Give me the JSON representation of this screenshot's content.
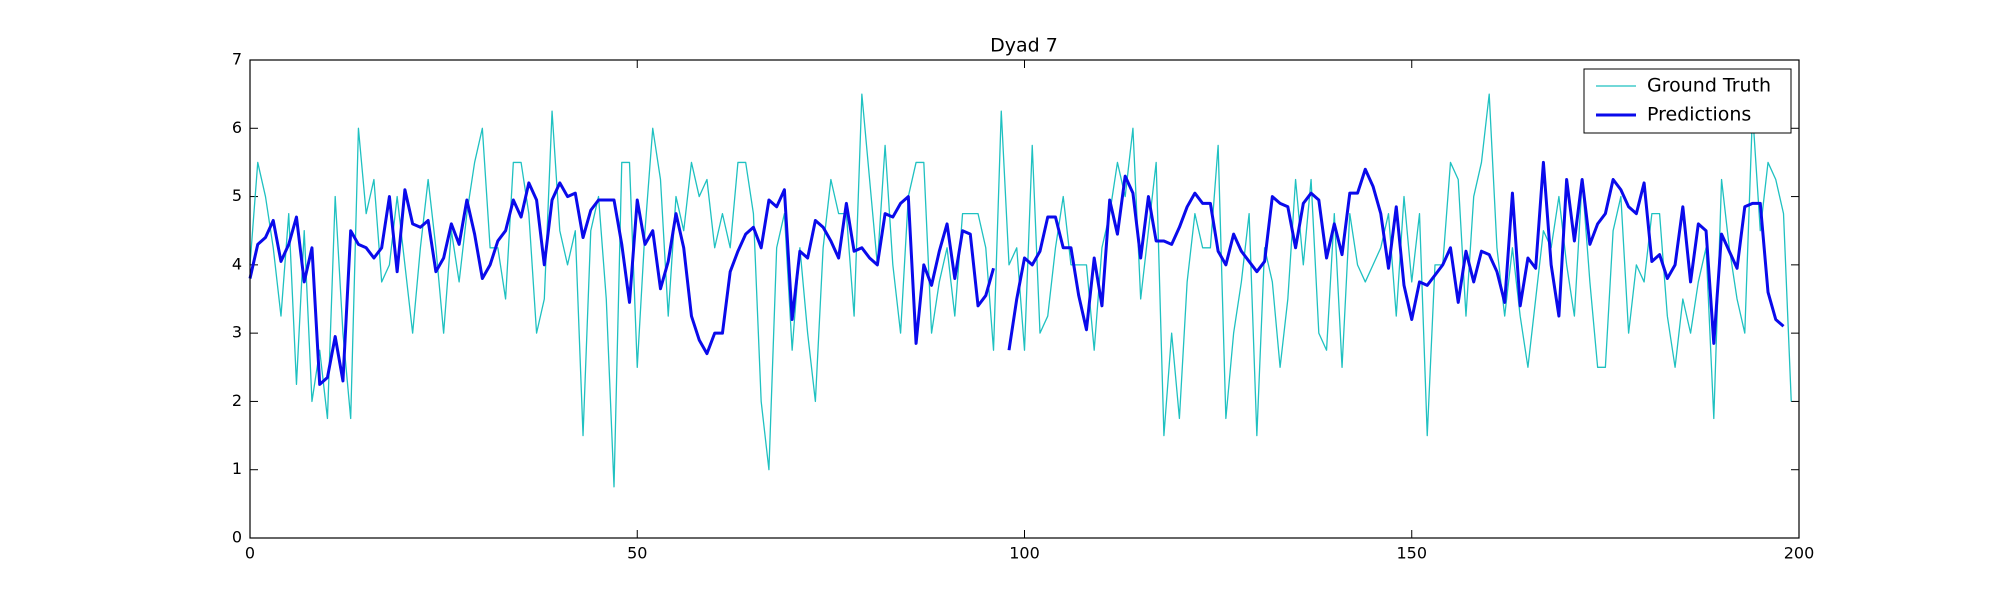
{
  "chart_data": {
    "type": "line",
    "title": "Dyad 7",
    "x": [
      0,
      1,
      2,
      3,
      4,
      5,
      6,
      7,
      8,
      9,
      10,
      11,
      12,
      13,
      14,
      15,
      16,
      17,
      18,
      19,
      20,
      21,
      22,
      23,
      24,
      25,
      26,
      27,
      28,
      29,
      30,
      31,
      32,
      33,
      34,
      35,
      36,
      37,
      38,
      39,
      40,
      41,
      42,
      43,
      44,
      45,
      46,
      47,
      48,
      49,
      50,
      51,
      52,
      53,
      54,
      55,
      56,
      57,
      58,
      59,
      60,
      61,
      62,
      63,
      64,
      65,
      66,
      67,
      68,
      69,
      70,
      71,
      72,
      73,
      74,
      75,
      76,
      77,
      78,
      79,
      80,
      81,
      82,
      83,
      84,
      85,
      86,
      87,
      88,
      89,
      90,
      91,
      92,
      93,
      94,
      95,
      96,
      97,
      98,
      99,
      100,
      101,
      102,
      103,
      104,
      105,
      106,
      107,
      108,
      109,
      110,
      111,
      112,
      113,
      114,
      115,
      116,
      117,
      118,
      119,
      120,
      121,
      122,
      123,
      124,
      125,
      126,
      127,
      128,
      129,
      130,
      131,
      132,
      133,
      134,
      135,
      136,
      137,
      138,
      139,
      140,
      141,
      142,
      143,
      144,
      145,
      146,
      147,
      148,
      149,
      150,
      151,
      152,
      153,
      154,
      155,
      156,
      157,
      158,
      159,
      160,
      161,
      162,
      163,
      164,
      165,
      166,
      167,
      168,
      169,
      170,
      171,
      172,
      173,
      174,
      175,
      176,
      177,
      178,
      179,
      180,
      181,
      182,
      183,
      184,
      185,
      186,
      187,
      188,
      189,
      190,
      191,
      192,
      193,
      194,
      195,
      196,
      197,
      198,
      199
    ],
    "series": [
      {
        "name": "Ground Truth",
        "color": "#1fc1c1",
        "width": 1.3,
        "values": [
          4.0,
          5.5,
          5.0,
          4.25,
          3.25,
          4.75,
          2.25,
          4.5,
          2.0,
          2.75,
          1.75,
          5.0,
          3.0,
          1.75,
          6.0,
          4.75,
          5.25,
          3.75,
          4.0,
          5.0,
          4.0,
          3.0,
          4.25,
          5.25,
          4.25,
          3.0,
          4.5,
          3.75,
          4.75,
          5.5,
          6.0,
          4.25,
          4.25,
          3.5,
          5.5,
          5.5,
          4.75,
          3.0,
          3.5,
          6.25,
          4.5,
          4.0,
          4.5,
          1.5,
          4.5,
          5.0,
          3.5,
          0.75,
          5.5,
          5.5,
          2.5,
          4.5,
          6.0,
          5.25,
          3.25,
          5.0,
          4.5,
          5.5,
          5.0,
          5.25,
          4.25,
          4.75,
          4.25,
          5.5,
          5.5,
          4.75,
          2.0,
          1.0,
          4.25,
          4.75,
          2.75,
          4.25,
          3.0,
          2.0,
          4.25,
          5.25,
          4.75,
          4.75,
          3.25,
          6.5,
          5.25,
          4.0,
          5.75,
          4.0,
          3.0,
          5.0,
          5.5,
          5.5,
          3.0,
          3.75,
          4.25,
          3.25,
          4.75,
          4.75,
          4.75,
          4.25,
          2.75,
          6.25,
          4.0,
          4.25,
          2.75,
          5.75,
          3.0,
          3.25,
          4.25,
          5.0,
          4.0,
          4.0,
          4.0,
          2.75,
          4.25,
          4.75,
          5.5,
          5.0,
          6.0,
          3.5,
          4.5,
          5.5,
          1.5,
          3.0,
          1.75,
          3.75,
          4.75,
          4.25,
          4.25,
          5.75,
          1.75,
          3.0,
          3.75,
          4.75,
          1.5,
          4.25,
          3.75,
          2.5,
          3.5,
          5.25,
          4.0,
          5.25,
          3.0,
          2.75,
          4.75,
          2.5,
          4.75,
          4.0,
          3.75,
          4.0,
          4.25,
          4.75,
          3.25,
          5.0,
          3.75,
          4.75,
          1.5,
          4.0,
          4.0,
          5.5,
          5.25,
          3.25,
          5.0,
          5.5,
          6.5,
          4.25,
          3.25,
          4.25,
          3.25,
          2.5,
          3.5,
          4.5,
          4.25,
          5.0,
          4.0,
          3.25,
          5.25,
          3.75,
          2.5,
          2.5,
          4.5,
          5.0,
          3.0,
          4.0,
          3.75,
          4.75,
          4.75,
          3.25,
          2.5,
          3.5,
          3.0,
          3.75,
          4.25,
          1.75,
          5.25,
          4.25,
          3.5,
          3.0,
          6.25,
          4.5,
          5.5,
          5.25,
          4.75,
          2.0
        ]
      },
      {
        "name": "Predictions",
        "color": "#0a0aeb",
        "width": 3,
        "values": [
          3.8,
          4.3,
          4.4,
          4.65,
          4.05,
          4.3,
          4.7,
          3.75,
          4.25,
          2.25,
          2.35,
          2.95,
          2.3,
          4.5,
          4.3,
          4.25,
          4.1,
          4.25,
          5.0,
          3.9,
          5.1,
          4.6,
          4.55,
          4.65,
          3.9,
          4.1,
          4.6,
          4.3,
          4.95,
          4.45,
          3.8,
          4.0,
          4.35,
          4.5,
          4.95,
          4.7,
          5.2,
          4.95,
          4.0,
          4.95,
          5.2,
          5.0,
          5.05,
          4.4,
          4.8,
          4.95,
          4.95,
          4.95,
          4.3,
          3.45,
          4.95,
          4.3,
          4.5,
          3.65,
          4.05,
          4.75,
          4.25,
          3.25,
          2.9,
          2.7,
          3.0,
          3.0,
          3.9,
          4.2,
          4.45,
          4.55,
          4.25,
          4.95,
          4.85,
          5.1,
          3.2,
          4.2,
          4.1,
          4.65,
          4.55,
          4.35,
          4.1,
          4.9,
          4.2,
          4.25,
          4.1,
          4.0,
          4.75,
          4.7,
          4.9,
          5.0,
          2.85,
          4.0,
          3.7,
          4.2,
          4.6,
          3.8,
          4.5,
          4.45,
          3.4,
          3.55,
          3.95,
          null,
          2.75,
          3.5,
          4.1,
          4.0,
          4.2,
          4.7,
          4.7,
          4.25,
          4.25,
          3.55,
          3.05,
          4.1,
          3.4,
          4.95,
          4.45,
          5.3,
          5.05,
          4.1,
          5.0,
          4.35,
          4.35,
          4.3,
          4.55,
          4.85,
          5.05,
          4.9,
          4.9,
          4.2,
          4.0,
          4.45,
          4.2,
          4.05,
          3.9,
          4.05,
          5.0,
          4.9,
          4.85,
          4.25,
          4.9,
          5.05,
          4.95,
          4.1,
          4.6,
          4.15,
          5.05,
          5.05,
          5.4,
          5.15,
          4.75,
          3.95,
          4.85,
          3.7,
          3.2,
          3.75,
          3.7,
          3.85,
          4.0,
          4.25,
          3.45,
          4.2,
          3.75,
          4.2,
          4.15,
          3.9,
          3.45,
          5.05,
          3.4,
          4.1,
          3.95,
          5.5,
          4.0,
          3.25,
          5.25,
          4.35,
          5.25,
          4.3,
          4.6,
          4.75,
          5.25,
          5.1,
          4.85,
          4.75,
          5.2,
          4.05,
          4.15,
          3.8,
          4.0,
          4.85,
          3.75,
          4.6,
          4.5,
          2.85,
          4.45,
          4.2,
          3.95,
          4.85,
          4.9,
          4.9,
          3.6,
          3.2,
          3.1,
          null
        ]
      }
    ],
    "xlim": [
      0,
      200
    ],
    "xticks": [
      0,
      50,
      100,
      150,
      200
    ],
    "ylim": [
      0,
      7
    ],
    "yticks": [
      0,
      1,
      2,
      3,
      4,
      5,
      6,
      7
    ],
    "legend": "upper right"
  }
}
